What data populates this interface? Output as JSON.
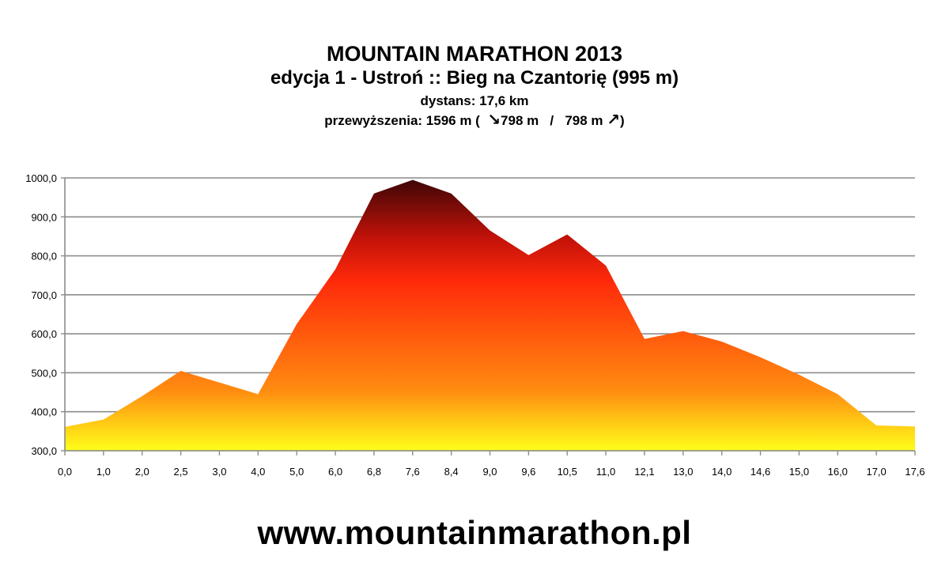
{
  "header": {
    "title": "MOUNTAIN MARATHON 2013",
    "subtitle": "edycja 1 - Ustroń :: Bieg na Czantorię (995 m)",
    "distance": "dystans: 17,6 km",
    "climb_prefix": "przewyższenia: 1596 m (",
    "descent_arrow": "↘",
    "descent_value": "798 m",
    "separator": "/",
    "ascent_value": "798 m",
    "ascent_arrow": "↗",
    "climb_suffix": ")"
  },
  "footer": {
    "website": "www.mountainmarathon.pl"
  },
  "colors": {
    "grid": "#8c8c8c",
    "gradient_top": "#3a0606",
    "gradient_upper": "#c21209",
    "gradient_mid": "#ff2a0a",
    "gradient_lower": "#ff8c10",
    "gradient_bottom": "#ffff1a"
  },
  "chart_data": {
    "type": "area",
    "title": "",
    "xlabel": "",
    "ylabel": "",
    "ylim": [
      300,
      1000
    ],
    "y_ticks": [
      "300,0",
      "400,0",
      "500,0",
      "600,0",
      "700,0",
      "800,0",
      "900,0",
      "1000,0"
    ],
    "grid": true,
    "legend": "none",
    "categories": [
      "0,0",
      "1,0",
      "2,0",
      "2,5",
      "3,0",
      "4,0",
      "5,0",
      "6,0",
      "6,8",
      "7,6",
      "8,4",
      "9,0",
      "9,6",
      "10,5",
      "11,0",
      "12,1",
      "13,0",
      "14,0",
      "14,6",
      "15,0",
      "16,0",
      "17,0",
      "17,6"
    ],
    "series": [
      {
        "values": [
          361,
          380,
          440,
          505,
          475,
          445,
          625,
          765,
          960,
          995,
          960,
          865,
          802,
          855,
          775,
          587,
          607,
          580,
          540,
          495,
          445,
          365,
          362
        ]
      }
    ]
  }
}
